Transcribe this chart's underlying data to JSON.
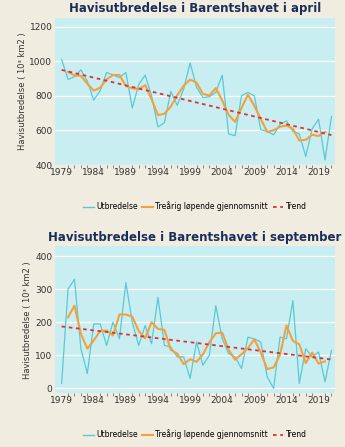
{
  "title_april": "Havisutbredelse i Barentshavet i april",
  "title_sept": "Havisutbredelse i Barentshavet i september",
  "ylabel": "Havisutbredelse ( 10³ km2 )",
  "legend_utbredelse": "Utbredelse",
  "legend_avg": "Treårig løpende gjennomsnitt",
  "legend_trend": "Trend",
  "years": [
    1979,
    1980,
    1981,
    1982,
    1983,
    1984,
    1985,
    1986,
    1987,
    1988,
    1989,
    1990,
    1991,
    1992,
    1993,
    1994,
    1995,
    1996,
    1997,
    1998,
    1999,
    2000,
    2001,
    2002,
    2003,
    2004,
    2005,
    2006,
    2007,
    2008,
    2009,
    2010,
    2011,
    2012,
    2013,
    2014,
    2015,
    2016,
    2017,
    2018,
    2019,
    2020,
    2021
  ],
  "april_values": [
    1010,
    895,
    910,
    950,
    885,
    775,
    830,
    935,
    920,
    905,
    935,
    730,
    865,
    920,
    800,
    620,
    645,
    825,
    745,
    840,
    990,
    850,
    790,
    795,
    820,
    920,
    580,
    570,
    800,
    820,
    800,
    605,
    595,
    575,
    635,
    655,
    595,
    580,
    450,
    610,
    665,
    430,
    680
  ],
  "sept_values": [
    15,
    300,
    330,
    120,
    45,
    195,
    195,
    130,
    200,
    150,
    320,
    200,
    130,
    190,
    135,
    275,
    130,
    125,
    95,
    95,
    30,
    140,
    70,
    100,
    250,
    150,
    105,
    95,
    60,
    155,
    150,
    140,
    35,
    0,
    155,
    150,
    265,
    15,
    120,
    95,
    110,
    20,
    115
  ],
  "color_utbredelse": "#5bc8d2",
  "color_avg": "#f5a03c",
  "color_trend": "#e03030",
  "color_title": "#1a2e5a",
  "bg_plot": "#c8eef2",
  "bg_figure": "#f0ece0",
  "april_ylim": [
    400,
    1250
  ],
  "sept_ylim": [
    -15,
    430
  ],
  "april_yticks": [
    400,
    600,
    800,
    1000,
    1200
  ],
  "sept_yticks": [
    0,
    100,
    200,
    300,
    400
  ],
  "xticks": [
    1979,
    1984,
    1989,
    1994,
    1999,
    2004,
    2009,
    2014,
    2019
  ]
}
